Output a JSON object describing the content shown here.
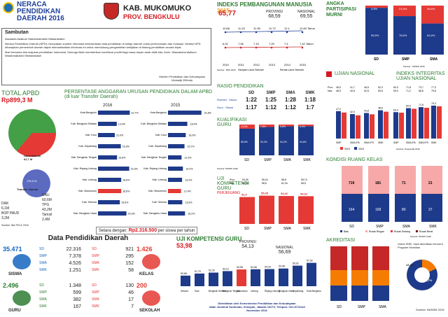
{
  "header": {
    "title_line1": "NERACA",
    "title_line2": "PENDIDIKAN",
    "title_line3": "DAERAH",
    "year": "2016",
    "kab": "KAB. MUKOMUKO",
    "prov": "PROV. BENGKULU",
    "ipm_title": "INDEKS PEMBANGUNAN MANUSIA",
    "ipm_year": "2015",
    "ipm_value": "65,77",
    "provinsi_label": "PROVINSI",
    "provinsi_value": "68,59",
    "nasional_label": "NASIONAL",
    "nasional_value": "69,55",
    "apm_title": "ANGKA PARTISIPASI MURNI"
  },
  "ipm_chart": {
    "years": [
      "2010",
      "2011",
      "2012",
      "2013",
      "2014",
      "2015"
    ],
    "top_values": [
      "10,66",
      "11,15",
      "11,36",
      "11,72",
      "12,1",
      "12,60 Tahun"
    ],
    "bottom_values": [
      "6,91",
      "7,06",
      "7,19",
      "7,29",
      "7,4",
      "7,42 Tahun"
    ],
    "legend1": "Harapan Lama Sekolah",
    "legend2": "Rerata Lama Sekolah",
    "source": "Sumber : BPS 2015"
  },
  "apm_chart": {
    "categories": [
      "SD",
      "SMP",
      "SMA"
    ],
    "top_pct": [
      "4,5%",
      "21,5%",
      "36,6%"
    ],
    "bottom_pct": [
      "95,5%",
      "78,5%",
      "63,4%"
    ],
    "source": "Sumber : PDSPK 2016"
  },
  "sambutan": {
    "title": "Sambutan",
    "salam": "Assalamu'alaikum Warahmatullahi Wabarakatuh",
    "body": "Neraca Pendidikan Daerah (NPD) merupakan sumber informasi ketersediaan data pendidikan di setiap daerah untuk perencanaan dan evaluasi. Melalui NPD diharapkan pemerintah daerah dapat memanfaatkan informasi ini untuk mendukung pengambilan kebijakan di bidang pendidikan secara tepat.",
    "close": "Mari bersama kita majukan pendidikan Indonesia. Semoga Allah memberikan kontribusi positif bagi masa depan anak didik kita. Amin. Wassalamu'alaikum Warahmatullahi Wabarakatuh",
    "sign1": "Menteri Pendidikan dan Kebudayaan",
    "sign2": "Muhadjir Effendy"
  },
  "apbd": {
    "title": "TOTAL APBD",
    "value": "Rp899,3 M",
    "dau_label": "Dana Daerah",
    "dau_value": "62,7 M",
    "transfer_label": "Transfer Daerah",
    "transfer_value": "135,5 M",
    "dak_label": "DAK",
    "dak_value": "6,1M",
    "bop_label": "BOP PAUD",
    "bop_value": "3,2M",
    "dau2_label": "DAU",
    "dau2_value": "60,6M",
    "tpg_label": "TPG",
    "tpg_value": "43,2M",
    "tamsil_label": "Tamsil",
    "tamsil_value": "2,4M",
    "source": "Sumber: Bini PKLK 2016"
  },
  "anggaran": {
    "title": "PERSENTASE ANGGARAN URUSAN PENDIDIKAN DALAM APBD",
    "subtitle": "(di luar Transfer Daerah)",
    "col2016": "2016",
    "col2015": "2015",
    "rows2016": [
      [
        "Kota Bengkulu",
        "22,7%",
        0.227
      ],
      [
        "Kab. Bengkulu Selatan",
        "13,4%",
        0.134
      ],
      [
        "Kab. Kaur",
        "12,0%",
        0.12
      ],
      [
        "Kab. Kepahiang",
        "16,3%",
        0.163
      ],
      [
        "Kab. Bengkulu Tengah",
        "13,6%",
        0.136
      ],
      [
        "Kab. Rejang Lebong",
        "22,3%",
        0.223
      ],
      [
        "Kab. Lebong",
        "16,6%",
        0.166
      ],
      [
        "Kab. Mukomuko",
        "16,6%",
        0.166
      ],
      [
        "Kab. Seluma",
        "15,6%",
        0.156
      ],
      [
        "Kab. Bengkulu Utara",
        "20,3%",
        0.203
      ]
    ],
    "rows2015": [
      [
        "Kota Bengkulu",
        "31,8%",
        0.318
      ],
      [
        "Kab. Bengkulu Selatan",
        "18,4%",
        0.184
      ],
      [
        "Kab. Kaur",
        "16,9%",
        0.169
      ],
      [
        "Kab. Kepahiang",
        "15,7%",
        0.157
      ],
      [
        "Kab. Bengkulu Tengah",
        "12,9%",
        0.129
      ],
      [
        "Kab. Rejang Lebong",
        "14,2%",
        0.142
      ],
      [
        "Kab. Lebong",
        "13,4%",
        0.134
      ],
      [
        "Kab. Mukomuko",
        "12,4%",
        0.124
      ],
      [
        "Kab. Seluma",
        "13,6%",
        0.136
      ],
      [
        "Kab. Bengkulu Utara",
        "16,2%",
        0.162
      ]
    ],
    "footer_label": "Setara dengan:",
    "footer_value": "Rp2.316.500",
    "footer_unit": "per siswa per tahun"
  },
  "rasio": {
    "title": "RASIO PENDIDIKAN",
    "headers": [
      "SD",
      "SMP",
      "SMA",
      "SMK"
    ],
    "row1_label": "Rombel : Siswa",
    "row1": [
      "1:22",
      "1:25",
      "1:28",
      "1:18"
    ],
    "row2_label": "Guru : Siswa",
    "row2": [
      "1:17",
      "1:12",
      "1:12",
      "1:7"
    ]
  },
  "kualifikasi": {
    "title": "KUALIFIKASI GURU",
    "categories": [
      "SD",
      "SMP",
      "SMA",
      "SMK"
    ],
    "top": [
      "13,5%",
      "7,8%",
      "5,8%",
      "5,4%"
    ],
    "bottom": [
      "86,5%",
      "92,2%",
      "94,2%",
      "94,6%"
    ],
    "legend": [
      "< D4",
      "≥ S1"
    ],
    "source": "Sumber: PDSPK 2016"
  },
  "ukg_small": {
    "title": "UJI KOMPETENSI GURU",
    "sub": "PERJENJANG",
    "categories": [
      "SD",
      "SMP",
      "SMA",
      "SMK"
    ],
    "values": [
      "52,4",
      "55,05",
      "54,42",
      "54,02"
    ],
    "prov": [
      "53,99",
      "55,24",
      "58,8",
      "55,74"
    ],
    "nas": [
      "54,09",
      "58,6",
      "61,34",
      "58,5"
    ],
    "prov_label": "Prov.",
    "nas_label": "Nas.",
    "source": "Sumber: SIM UKG 2015"
  },
  "ujian": {
    "title1": "UJIAN NASIONAL",
    "title2": "INDEKS INTEGRITAS UJIAN NASIONAL",
    "prov_label": "Prov.",
    "nas_label": "Nas.",
    "un_prov": [
      "48,5",
      "41,7",
      "46,5",
      "52,3"
    ],
    "un_nas": [
      "48,5",
      "40,8",
      "52,8",
      "55,5"
    ],
    "un_vals": [
      "47,0",
      "42,0",
      "43,8",
      "48,5"
    ],
    "ii_prov": [
      "60,0",
      "71,8",
      "73,7",
      "77,3"
    ],
    "ii_nas": [
      "59,0",
      "71,2",
      "68,8",
      "75,8"
    ],
    "ii_vals": [
      "60,4",
      "69,5",
      "71,8",
      "75,3"
    ],
    "cats": [
      "SMP",
      "SMA IPA",
      "SMA IPS",
      "SMK"
    ],
    "legend": [
      "2015",
      "2016"
    ],
    "source": "Sumber: Puspendik 2016"
  },
  "kondisi": {
    "title": "KONDISI RUANG KELAS",
    "categories": [
      "SD",
      "SMP",
      "SMA",
      "SMK"
    ],
    "vals_top": [
      "719",
      "181",
      "71",
      "21"
    ],
    "vals_bottom": [
      "164",
      "168",
      "80",
      "37"
    ],
    "legend": [
      "Baik",
      "Rusak Ringan",
      "Rusak Sedang",
      "Rusak Berat"
    ],
    "source": "Sumber: PDSPK 2016"
  },
  "akreditasi": {
    "title": "AKREDITASI",
    "categories": [
      "SD",
      "SMP",
      "SMA"
    ],
    "note": "Untuk SMK, hasil akreditasi menurut Program Keahlian",
    "donut_a": "13,3%",
    "donut_b": "66,7%",
    "source": "Sumber: BANSM 2016"
  },
  "data_pendidikan": {
    "title": "Data Pendidikan Daerah",
    "siswa_total": "35.471",
    "siswa_label": "SISWA",
    "siswa": [
      [
        "SD",
        "22.316"
      ],
      [
        "SMP",
        "7.378"
      ],
      [
        "SMA",
        "4.526"
      ],
      [
        "SMK",
        "1.251"
      ]
    ],
    "kelas_total": "1.426",
    "kelas_label": "KELAS",
    "kelas": [
      [
        "SD",
        "921"
      ],
      [
        "SMP",
        "295"
      ],
      [
        "SMA",
        "152"
      ],
      [
        "SMK",
        "58"
      ]
    ],
    "guru_total": "2.496",
    "guru_label": "GURU",
    "guru": [
      [
        "SD",
        "1.348"
      ],
      [
        "SMP",
        "599"
      ],
      [
        "SMA",
        "382"
      ],
      [
        "SMK",
        "167"
      ]
    ],
    "sekolah_total": "200",
    "sekolah_label": "SEKOLAH",
    "sekolah": [
      [
        "SD",
        "130"
      ],
      [
        "SMP",
        "46"
      ],
      [
        "SMA",
        "17"
      ],
      [
        "SMK",
        "7"
      ]
    ]
  },
  "ukg_big": {
    "title": "UJI KOMPETENSI GURU",
    "value": "53,98",
    "prov_label": "PROVINSI",
    "prov_value": "54,13",
    "nas_label": "NASIONAL",
    "nas_value": "56,69",
    "regions": [
      "Kab. Seluma",
      "Kab. Kaur",
      "Kab. Bengkulu Selatan",
      "Kab. Bengkulu Tengah",
      "Kab. Mukomuko",
      "Kab. Lebong",
      "Kab. Rejang Lebong",
      "Kab. Bengkulu Utara",
      "Kab. Kepahiang",
      "Kota Bengkulu"
    ],
    "vals": [
      "50,68",
      "51,79",
      "52,29",
      "53,10",
      "53,98",
      "54,08",
      "54,18",
      "54,48",
      "56,02",
      "57,52"
    ],
    "footer1": "Diterbitkan oleh Kementerian Pendidikan dan Kebudayaan",
    "footer2": "Jalan Jenderal Sudirman, Senayan, Jakarta 10270, Telepon: 021-5711144",
    "footer3": "November 2016"
  }
}
